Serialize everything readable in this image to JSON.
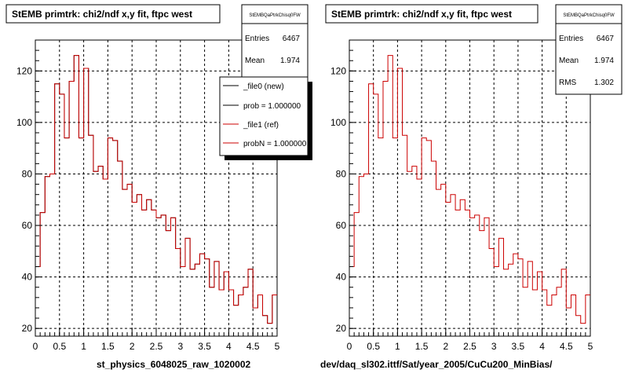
{
  "panels": [
    {
      "title": "StEMB primtrk: chi2/ndf x,y fit, ftpc west",
      "stats": {
        "name": "StEMBQaPtrkChisq0FW",
        "rows": [
          {
            "label": "Entries",
            "value": "6467"
          },
          {
            "label": "Mean",
            "value": "1.974"
          }
        ]
      },
      "footer": "st_physics_6048025_raw_1020002",
      "legend": {
        "entries": [
          {
            "label": "_file0 (new)",
            "color": "#000000"
          },
          {
            "label": "prob = 1.000000",
            "color": "#000000"
          },
          {
            "label": "_file1 (ref)",
            "color": "#cc0000"
          },
          {
            "label": "probN = 1.000000",
            "color": "#cc0000"
          }
        ]
      }
    },
    {
      "title": "StEMB primtrk: chi2/ndf x,y fit, ftpc west",
      "stats": {
        "name": "StEMBQaPtrkChisq0FW",
        "rows": [
          {
            "label": "Entries",
            "value": "6467"
          },
          {
            "label": "Mean",
            "value": "1.974"
          },
          {
            "label": "RMS",
            "value": "1.302"
          }
        ]
      },
      "footer": "dev/daq_sl302.ittf/Sat/year_2005/CuCu200_MinBias/"
    }
  ],
  "chart_data": [
    {
      "type": "histogram",
      "xlim": [
        0,
        5
      ],
      "ylim": [
        17,
        132
      ],
      "xticks": [
        "0",
        "0.5",
        "1",
        "1.5",
        "2",
        "2.5",
        "3",
        "3.5",
        "4",
        "4.5",
        "5"
      ],
      "yticks": [
        "20",
        "40",
        "60",
        "80",
        "100",
        "120"
      ],
      "grid": true,
      "bin_width": 0.1,
      "series": [
        {
          "name": "_file1 (ref)",
          "color": "#cc0000",
          "values": [
            44,
            65,
            79,
            80,
            115,
            111,
            94,
            116,
            126,
            94,
            121,
            95,
            81,
            83,
            78,
            94,
            93,
            85,
            74,
            76,
            69,
            72,
            66,
            70,
            66,
            63,
            64,
            58,
            63,
            51,
            44,
            55,
            43,
            45,
            49,
            47,
            36,
            46,
            35,
            42,
            35,
            29,
            33,
            36,
            43,
            28,
            33,
            25,
            22,
            33
          ]
        },
        {
          "name": "_file0 (new)",
          "color": "#000000",
          "values": [
            44,
            65,
            79,
            80,
            115,
            111,
            94,
            116,
            126,
            94,
            121,
            95,
            81,
            83,
            78,
            94,
            93,
            85,
            74,
            76,
            69,
            72,
            66,
            70,
            66,
            63,
            64,
            58,
            63,
            51,
            44,
            55,
            43,
            45,
            49,
            47,
            36,
            46,
            35,
            42,
            35,
            29,
            33,
            36,
            43,
            28,
            33,
            25,
            22,
            33
          ]
        }
      ]
    },
    {
      "type": "histogram",
      "xlim": [
        0,
        5
      ],
      "ylim": [
        17,
        132
      ],
      "xticks": [
        "0",
        "0.5",
        "1",
        "1.5",
        "2",
        "2.5",
        "3",
        "3.5",
        "4",
        "4.5",
        "5"
      ],
      "yticks": [
        "20",
        "40",
        "60",
        "80",
        "100",
        "120"
      ],
      "grid": true,
      "bin_width": 0.1,
      "series": [
        {
          "name": "",
          "color": "#cc0000",
          "values": [
            44,
            65,
            79,
            80,
            115,
            111,
            94,
            116,
            126,
            94,
            121,
            95,
            81,
            83,
            78,
            94,
            93,
            85,
            74,
            76,
            69,
            72,
            66,
            70,
            66,
            63,
            64,
            58,
            63,
            51,
            44,
            55,
            43,
            45,
            49,
            47,
            36,
            46,
            35,
            42,
            35,
            29,
            33,
            36,
            43,
            28,
            33,
            25,
            22,
            33
          ]
        }
      ]
    }
  ]
}
